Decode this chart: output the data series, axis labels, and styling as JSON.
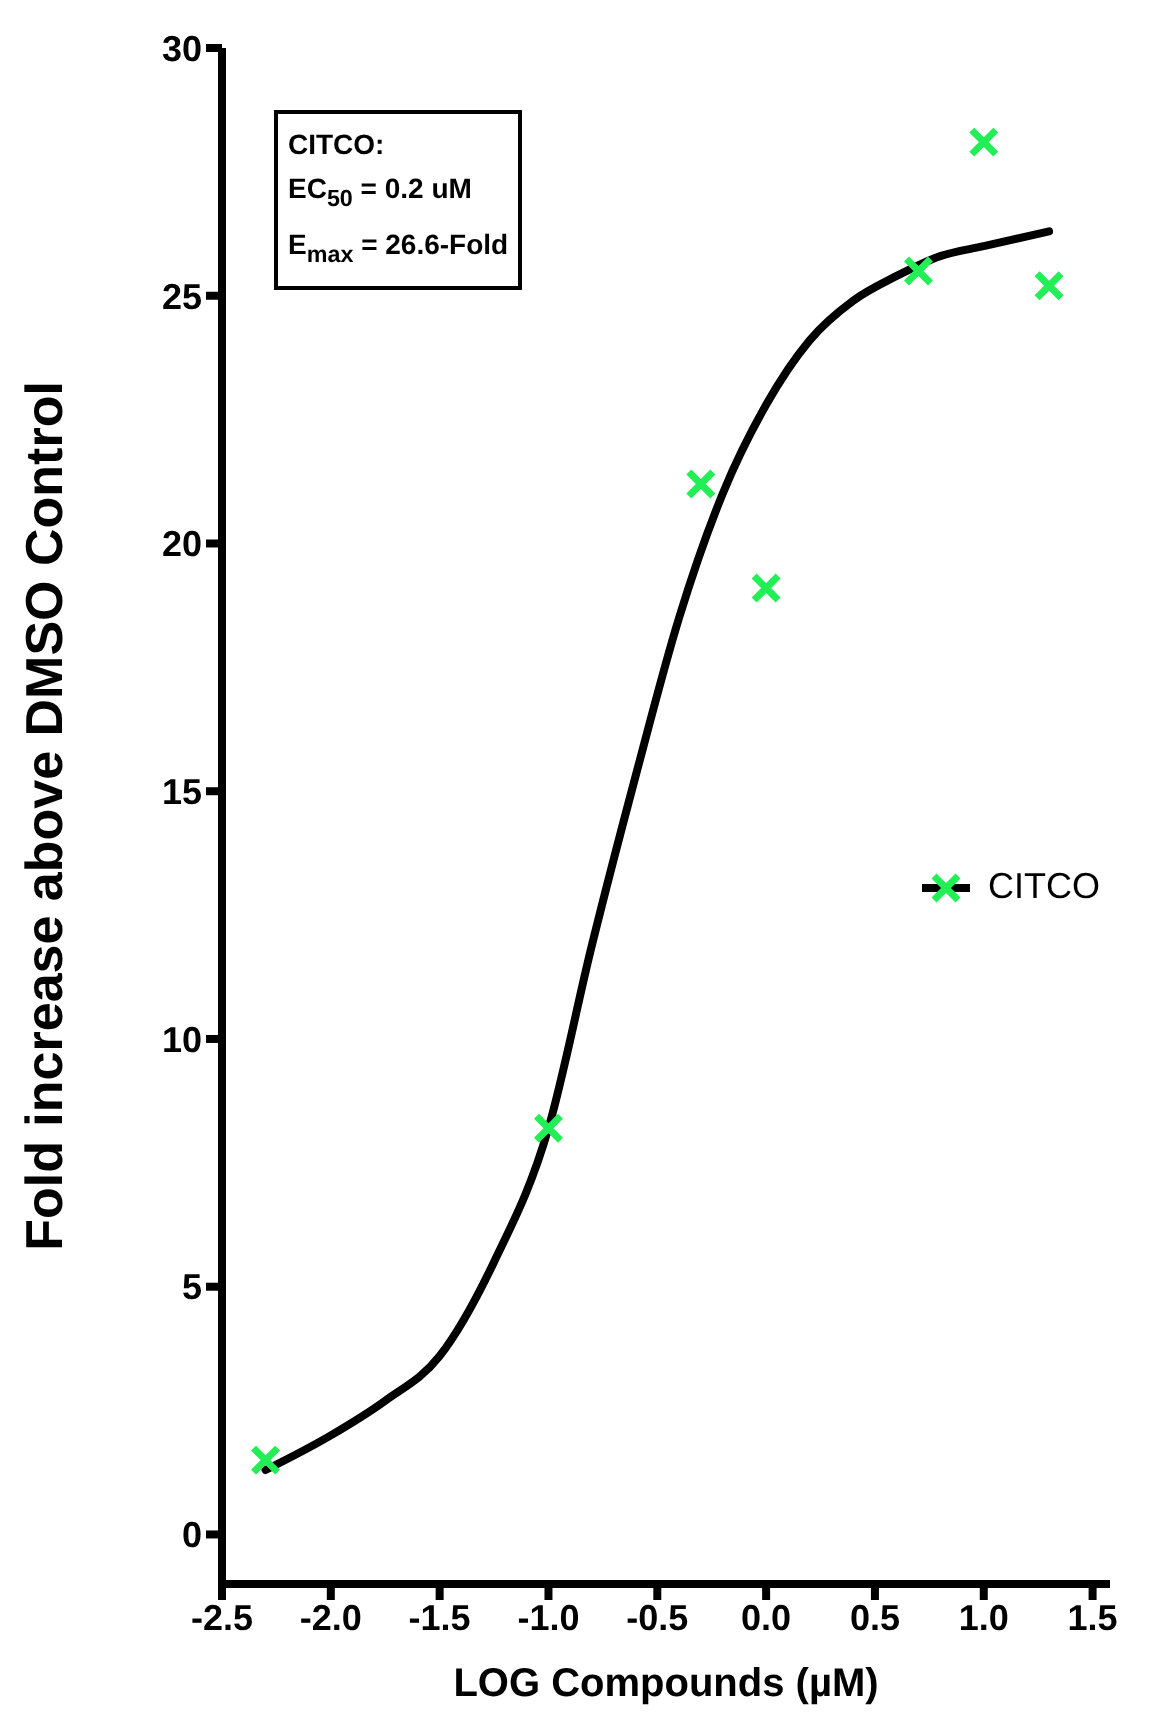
{
  "chart_data": {
    "type": "scatter",
    "xlabel": "LOG Compounds (µM)",
    "ylabel": "Fold increase above DMSO Control",
    "annotations": [
      "CITCO:",
      "EC$_{50}$ = 0.2 uM",
      "E$_{max}$ = 26.6-Fold"
    ],
    "xlim": [
      -2.5,
      1.58
    ],
    "ylim": [
      -1,
      30
    ],
    "xticks": [
      {
        "value": -2.5,
        "label": "-2.5"
      },
      {
        "value": -2,
        "label": "-2.0"
      },
      {
        "value": -1.5,
        "label": "-1.5"
      },
      {
        "value": -1,
        "label": "-1.0"
      },
      {
        "value": -0.5,
        "label": "-0.5"
      },
      {
        "value": 0,
        "label": "0.0"
      },
      {
        "value": 0.5,
        "label": "0.5"
      },
      {
        "value": 1,
        "label": "1.0"
      },
      {
        "value": 1.5,
        "label": "1.5"
      }
    ],
    "yticks": [
      0,
      5,
      10,
      15,
      20,
      25,
      30
    ],
    "grid": false,
    "legend": "right",
    "series": [
      {
        "name": "CITCO",
        "color": "#22ee55",
        "marker": "cross",
        "x": [
          -2.3,
          -1.0,
          -0.3,
          0,
          0.7,
          1.0,
          1.3
        ],
        "values": [
          1.5,
          8.2,
          21.2,
          19.1,
          25.5,
          28.1,
          25.2
        ]
      },
      {
        "type": "line",
        "color": "#000000",
        "marker": "none",
        "x": [
          -2.3,
          -2.0,
          -1.75,
          -1.5,
          -1.25,
          -1.0,
          -0.8,
          -0.6,
          -0.4,
          -0.2,
          0,
          0.2,
          0.4,
          0.6,
          0.8,
          1.0,
          1.3
        ],
        "values": [
          1.3,
          2.0,
          2.7,
          3.6,
          5.5,
          8.2,
          11.9,
          15.3,
          18.5,
          21.0,
          22.8,
          24.1,
          24.9,
          25.4,
          25.8,
          26.0,
          26.3
        ]
      }
    ]
  }
}
